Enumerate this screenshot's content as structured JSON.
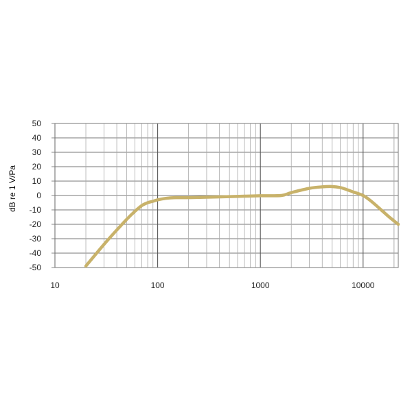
{
  "chart_data": {
    "type": "line",
    "title": "",
    "xlabel": "",
    "ylabel": "dB re 1 V/Pa",
    "x_scale": "log",
    "xlim": [
      10,
      22000
    ],
    "ylim": [
      -50,
      50
    ],
    "x_ticks": [
      10,
      100,
      1000,
      10000
    ],
    "x_tick_labels": [
      "10",
      "100",
      "1000",
      "10000"
    ],
    "y_ticks": [
      50,
      40,
      30,
      20,
      10,
      0,
      -10,
      -20,
      -30,
      -40,
      -50
    ],
    "y_tick_labels": [
      "50",
      "40",
      "30",
      "20",
      "10",
      "0",
      "-10",
      "-20",
      "-30",
      "-40",
      "-50"
    ],
    "grid": true,
    "legend": "none",
    "colors": {
      "curve": "#c8b26a",
      "grid_horizontal": "#777777",
      "grid_vertical_minor": "#a8a8a8",
      "grid_vertical_major": "#555555",
      "text": "#222222"
    },
    "series": [
      {
        "x": [
          20,
          30,
          40,
          50,
          60,
          70,
          80,
          90,
          100,
          120,
          150,
          200,
          300,
          500,
          700,
          1000,
          1600,
          2000,
          3000,
          4000,
          5000,
          6000,
          7000,
          8000,
          10000,
          12000,
          15000,
          18000,
          22000
        ],
        "y": [
          -49,
          -34,
          -24,
          -16.5,
          -11,
          -7,
          -5,
          -4,
          -3,
          -2,
          -1.5,
          -1.5,
          -1.2,
          -0.8,
          -0.5,
          -0.2,
          0,
          2,
          5,
          6,
          6.2,
          5.5,
          4,
          2.5,
          0,
          -4,
          -10,
          -15,
          -20
        ]
      }
    ]
  }
}
